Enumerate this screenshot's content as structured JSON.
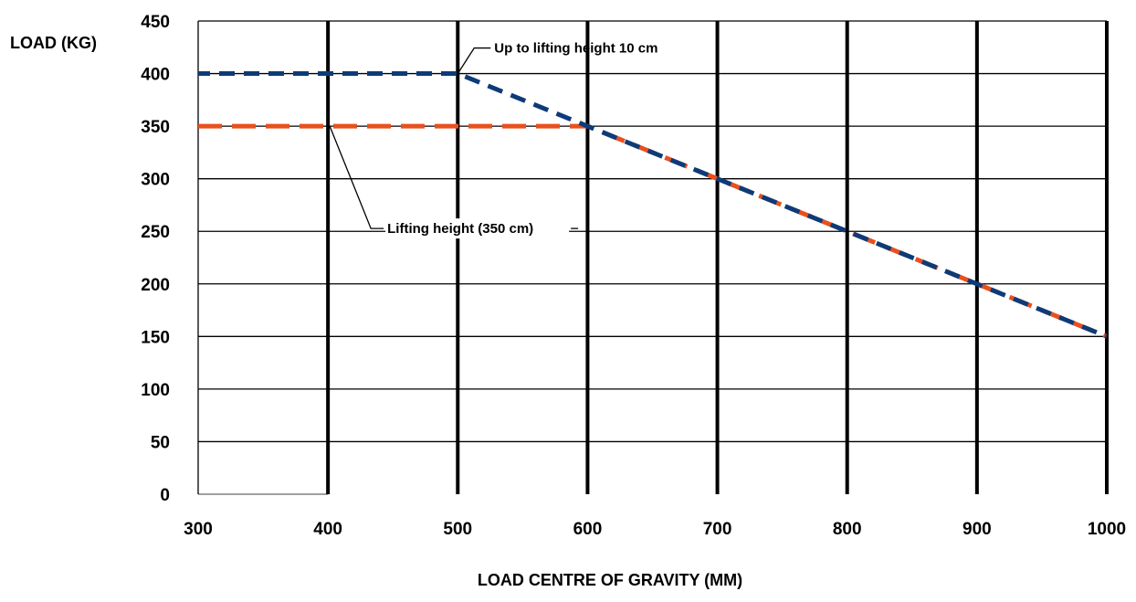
{
  "chart_data": {
    "type": "line",
    "xlabel": "LOAD CENTRE OF GRAVITY (MM)",
    "ylabel": "LOAD (KG)",
    "xlim": [
      300,
      1000
    ],
    "ylim": [
      0,
      450
    ],
    "x_ticks": [
      300,
      400,
      500,
      600,
      700,
      800,
      900,
      1000
    ],
    "y_ticks": [
      0,
      50,
      100,
      150,
      200,
      250,
      300,
      350,
      400,
      450
    ],
    "grid": true,
    "line_style": "dashed",
    "series": [
      {
        "name": "Up to lifting height 10 cm",
        "color": "#0d3b78",
        "x": [
          300,
          500,
          1000
        ],
        "y": [
          400,
          400,
          150
        ]
      },
      {
        "name": "Lifting height (350 cm)",
        "color": "#e8501e",
        "x": [
          300,
          600,
          1000
        ],
        "y": [
          350,
          350,
          150
        ]
      }
    ],
    "annotations": [
      {
        "text": "Up to lifting height 10 cm",
        "series": 0,
        "x": 500,
        "y": 400
      },
      {
        "text": "Lifting height (350 cm)",
        "series": 1,
        "x": 400,
        "y": 350
      }
    ]
  }
}
